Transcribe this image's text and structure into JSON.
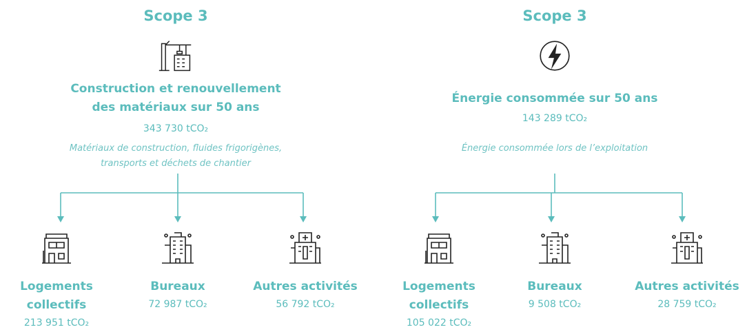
{
  "panels": [
    {
      "scope": "Scope 3",
      "heading": [
        "Construction et renouvellement",
        "des matériaux sur 50 ans"
      ],
      "total": "343 730 tCO₂",
      "description": [
        "Matériaux de construction, fluides frigorigènes,",
        "transports et déchets de chantier"
      ],
      "children": [
        {
          "label": [
            "Logements",
            "collectifs"
          ],
          "value": "213 951 tCO₂"
        },
        {
          "label": [
            "Bureaux"
          ],
          "value": "72 987 tCO₂"
        },
        {
          "label": [
            "Autres activités"
          ],
          "value": "56 792 tCO₂"
        }
      ]
    },
    {
      "scope": "Scope 3",
      "heading": [
        "Énergie consommée sur 50 ans"
      ],
      "total": "143 289 tCO₂",
      "description": [
        "Énergie consommée lors de l’exploitation"
      ],
      "children": [
        {
          "label": [
            "Logements",
            "collectifs"
          ],
          "value": "105 022 tCO₂"
        },
        {
          "label": [
            "Bureaux"
          ],
          "value": "9 508 tCO₂"
        },
        {
          "label": [
            "Autres activités"
          ],
          "value": "28 759 tCO₂"
        }
      ]
    }
  ]
}
